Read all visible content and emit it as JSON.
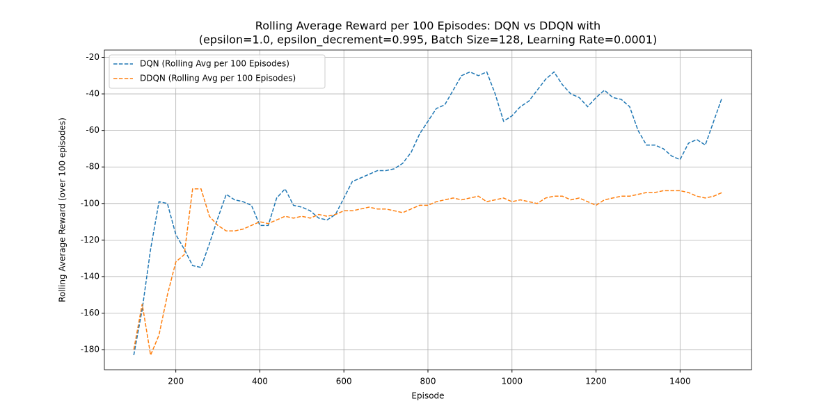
{
  "chart_data": {
    "type": "line",
    "title": "Rolling Average Reward per 100 Episodes: DQN vs DDQN with",
    "subtitle": "(epsilon=1.0, epsilon_decrement=0.995, Batch Size=128, Learning Rate=0.0001)",
    "x_label": "Episode",
    "y_label": "Rolling Average Reward (over 100 episodes)",
    "x": [
      100,
      120,
      140,
      160,
      180,
      200,
      220,
      240,
      260,
      280,
      300,
      320,
      340,
      360,
      380,
      400,
      420,
      440,
      460,
      480,
      500,
      520,
      540,
      560,
      580,
      600,
      620,
      640,
      660,
      680,
      700,
      720,
      740,
      760,
      780,
      800,
      820,
      840,
      860,
      880,
      900,
      920,
      940,
      960,
      980,
      1000,
      1020,
      1040,
      1060,
      1080,
      1100,
      1120,
      1140,
      1160,
      1180,
      1200,
      1220,
      1240,
      1260,
      1280,
      1300,
      1320,
      1340,
      1360,
      1380,
      1400,
      1420,
      1440,
      1460,
      1480,
      1500
    ],
    "series": [
      {
        "name": "DQN (Rolling Avg per 100 Episodes)",
        "color": "#1f77b4",
        "values": [
          -183,
          -158,
          -125,
          -99,
          -100,
          -117,
          -125,
          -134,
          -135,
          -122,
          -108,
          -95,
          -98,
          -99,
          -101,
          -112,
          -112,
          -97,
          -92,
          -101,
          -102,
          -104,
          -108,
          -109,
          -106,
          -97,
          -88,
          -86,
          -84,
          -82,
          -82,
          -81,
          -78,
          -72,
          -62,
          -55,
          -48,
          -46,
          -38,
          -30,
          -28,
          -30,
          -28,
          -40,
          -55,
          -52,
          -47,
          -44,
          -38,
          -32,
          -28,
          -35,
          -40,
          -42,
          -47,
          -42,
          -38,
          -42,
          -43,
          -47,
          -60,
          -68,
          -68,
          -70,
          -74,
          -76,
          -67,
          -65,
          -68,
          -55,
          -42
        ]
      },
      {
        "name": "DDQN (Rolling Avg per 100 Episodes)",
        "color": "#ff7f0e",
        "values": [
          -180,
          -155,
          -183,
          -172,
          -150,
          -132,
          -128,
          -92,
          -92,
          -107,
          -112,
          -115,
          -115,
          -114,
          -112,
          -110,
          -111,
          -109,
          -107,
          -108,
          -107,
          -108,
          -106,
          -107,
          -106,
          -104,
          -104,
          -103,
          -102,
          -103,
          -103,
          -104,
          -105,
          -103,
          -101,
          -101,
          -99,
          -98,
          -97,
          -98,
          -97,
          -96,
          -99,
          -98,
          -97,
          -99,
          -98,
          -99,
          -100,
          -97,
          -96,
          -96,
          -98,
          -97,
          -99,
          -101,
          -98,
          -97,
          -96,
          -96,
          -95,
          -94,
          -94,
          -93,
          -93,
          -93,
          -94,
          -96,
          -97,
          -96,
          -94
        ]
      }
    ],
    "xlim": [
      30,
      1570
    ],
    "ylim": [
      -191,
      -16
    ],
    "xticks": [
      200,
      400,
      600,
      800,
      1000,
      1200,
      1400
    ],
    "yticks": [
      -180,
      -160,
      -140,
      -120,
      -100,
      -80,
      -60,
      -40,
      -20
    ],
    "grid": true,
    "legend": "upper left"
  }
}
